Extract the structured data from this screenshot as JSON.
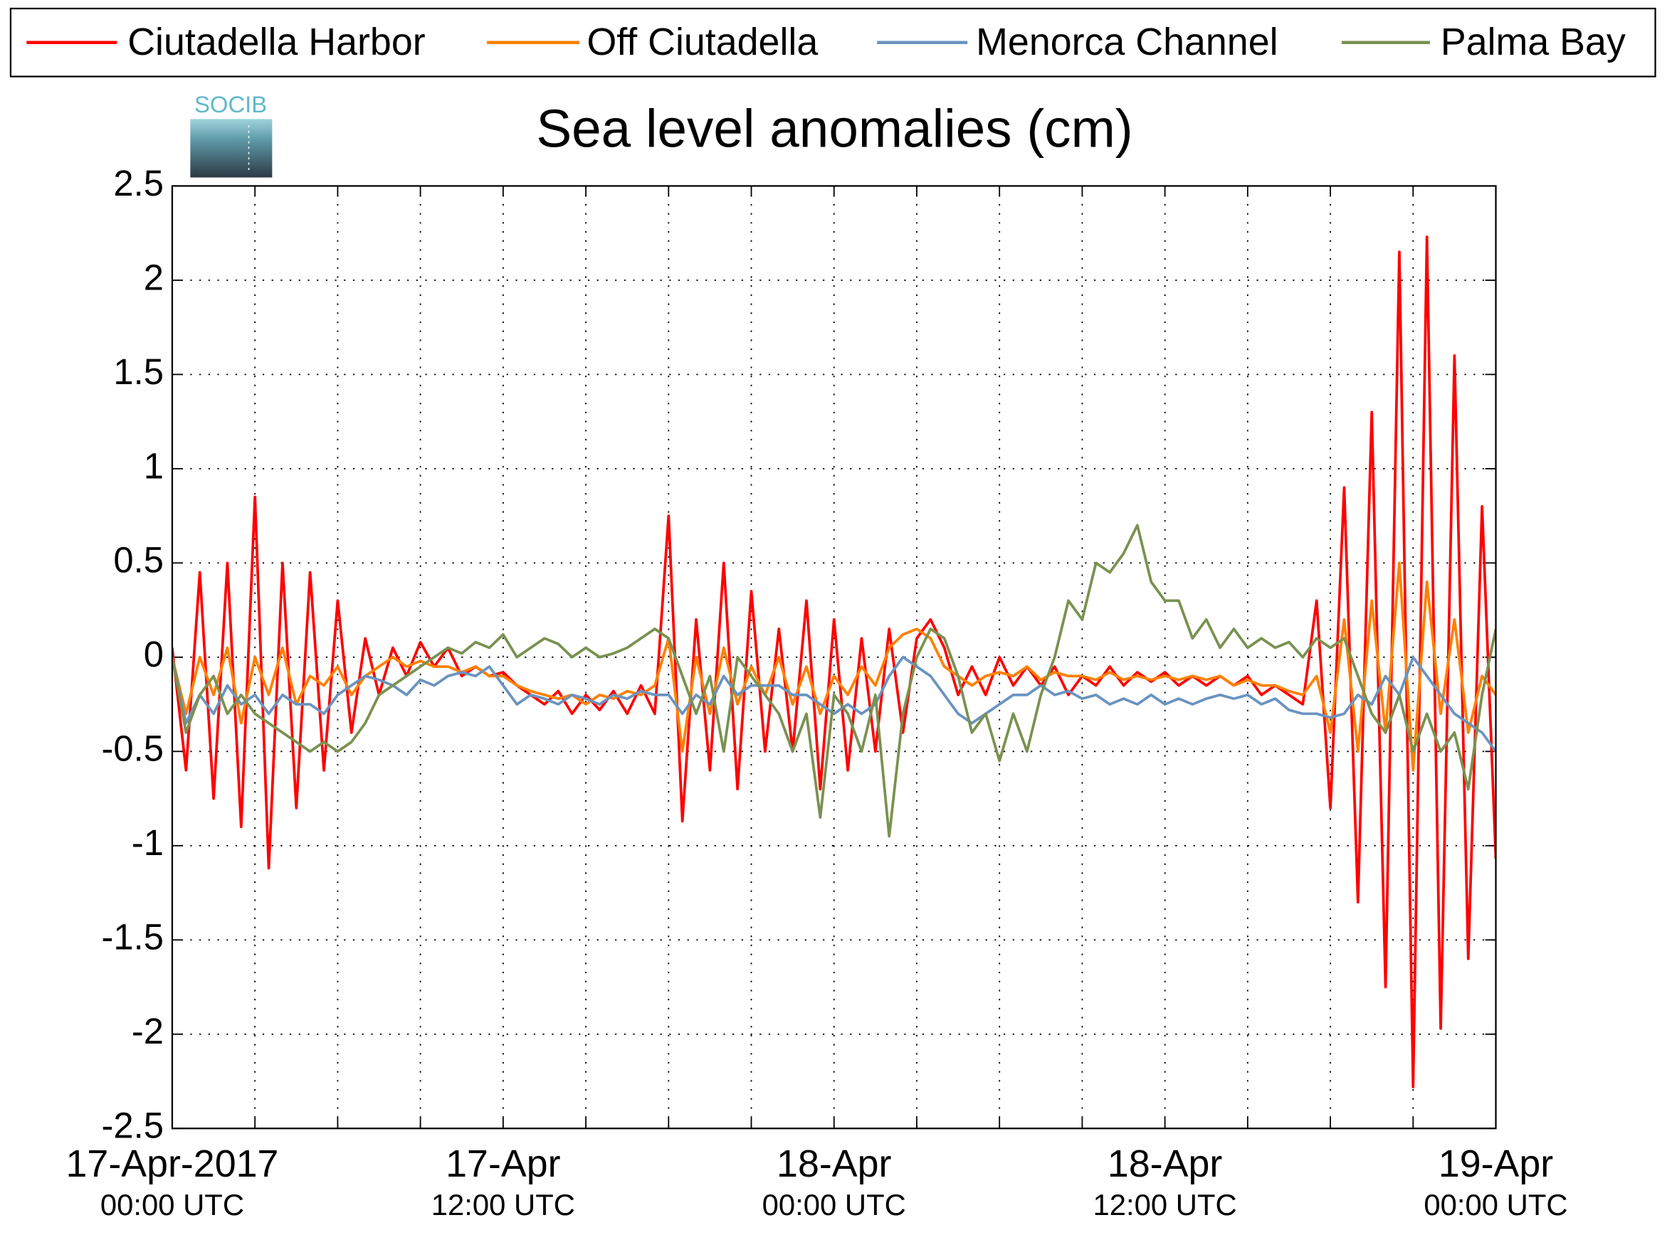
{
  "chart_data": {
    "type": "line",
    "title": "Sea level anomalies (cm)",
    "logo_text": "SOCIB",
    "x": [
      "2017-04-17T00:00Z",
      "2017-04-17T00:30Z",
      "2017-04-17T01:00Z",
      "2017-04-17T01:30Z",
      "2017-04-17T02:00Z",
      "2017-04-17T02:30Z",
      "2017-04-17T03:00Z",
      "2017-04-17T03:30Z",
      "2017-04-17T04:00Z",
      "2017-04-17T04:30Z",
      "2017-04-17T05:00Z",
      "2017-04-17T05:30Z",
      "2017-04-17T06:00Z",
      "2017-04-17T06:30Z",
      "2017-04-17T07:00Z",
      "2017-04-17T07:30Z",
      "2017-04-17T08:00Z",
      "2017-04-17T08:30Z",
      "2017-04-17T09:00Z",
      "2017-04-17T09:30Z",
      "2017-04-17T10:00Z",
      "2017-04-17T10:30Z",
      "2017-04-17T11:00Z",
      "2017-04-17T11:30Z",
      "2017-04-17T12:00Z",
      "2017-04-17T12:30Z",
      "2017-04-17T13:00Z",
      "2017-04-17T13:30Z",
      "2017-04-17T14:00Z",
      "2017-04-17T14:30Z",
      "2017-04-17T15:00Z",
      "2017-04-17T15:30Z",
      "2017-04-17T16:00Z",
      "2017-04-17T16:30Z",
      "2017-04-17T17:00Z",
      "2017-04-17T17:30Z",
      "2017-04-17T18:00Z",
      "2017-04-17T18:30Z",
      "2017-04-17T19:00Z",
      "2017-04-17T19:30Z",
      "2017-04-17T20:00Z",
      "2017-04-17T20:30Z",
      "2017-04-17T21:00Z",
      "2017-04-17T21:30Z",
      "2017-04-17T22:00Z",
      "2017-04-17T22:30Z",
      "2017-04-17T23:00Z",
      "2017-04-17T23:30Z",
      "2017-04-18T00:00Z",
      "2017-04-18T00:30Z",
      "2017-04-18T01:00Z",
      "2017-04-18T01:30Z",
      "2017-04-18T02:00Z",
      "2017-04-18T02:30Z",
      "2017-04-18T03:00Z",
      "2017-04-18T03:30Z",
      "2017-04-18T04:00Z",
      "2017-04-18T04:30Z",
      "2017-04-18T05:00Z",
      "2017-04-18T05:30Z",
      "2017-04-18T06:00Z",
      "2017-04-18T06:30Z",
      "2017-04-18T07:00Z",
      "2017-04-18T07:30Z",
      "2017-04-18T08:00Z",
      "2017-04-18T08:30Z",
      "2017-04-18T09:00Z",
      "2017-04-18T09:30Z",
      "2017-04-18T10:00Z",
      "2017-04-18T10:30Z",
      "2017-04-18T11:00Z",
      "2017-04-18T11:30Z",
      "2017-04-18T12:00Z",
      "2017-04-18T12:30Z",
      "2017-04-18T13:00Z",
      "2017-04-18T13:30Z",
      "2017-04-18T14:00Z",
      "2017-04-18T14:30Z",
      "2017-04-18T15:00Z",
      "2017-04-18T15:30Z",
      "2017-04-18T16:00Z",
      "2017-04-18T16:30Z",
      "2017-04-18T17:00Z",
      "2017-04-18T17:30Z",
      "2017-04-18T18:00Z",
      "2017-04-18T18:30Z",
      "2017-04-18T19:00Z",
      "2017-04-18T19:30Z",
      "2017-04-18T20:00Z",
      "2017-04-18T20:30Z",
      "2017-04-18T21:00Z",
      "2017-04-18T21:30Z",
      "2017-04-18T22:00Z",
      "2017-04-18T22:30Z",
      "2017-04-18T23:00Z",
      "2017-04-18T23:30Z",
      "2017-04-19T00:00Z"
    ],
    "series": [
      {
        "name": "Ciutadella Harbor",
        "color": "#ff0000",
        "values": [
          0.05,
          -0.6,
          0.45,
          -0.75,
          0.5,
          -0.9,
          0.85,
          -1.12,
          0.5,
          -0.8,
          0.45,
          -0.6,
          0.3,
          -0.4,
          0.1,
          -0.2,
          0.05,
          -0.1,
          0.08,
          -0.05,
          0.05,
          -0.1,
          -0.05,
          -0.1,
          -0.08,
          -0.15,
          -0.2,
          -0.25,
          -0.18,
          -0.3,
          -0.2,
          -0.28,
          -0.18,
          -0.3,
          -0.15,
          -0.3,
          0.75,
          -0.87,
          0.2,
          -0.6,
          0.5,
          -0.7,
          0.35,
          -0.5,
          0.15,
          -0.5,
          0.3,
          -0.7,
          0.2,
          -0.6,
          0.1,
          -0.5,
          0.15,
          -0.4,
          0.1,
          0.2,
          0.05,
          -0.2,
          -0.05,
          -0.2,
          0.0,
          -0.15,
          -0.05,
          -0.15,
          -0.05,
          -0.2,
          -0.1,
          -0.15,
          -0.05,
          -0.15,
          -0.08,
          -0.13,
          -0.08,
          -0.15,
          -0.1,
          -0.15,
          -0.1,
          -0.15,
          -0.1,
          -0.2,
          -0.15,
          -0.2,
          -0.25,
          0.3,
          -0.8,
          0.9,
          -1.3,
          1.3,
          -1.75,
          2.15,
          -2.28,
          2.23,
          -1.97,
          1.6,
          -1.6,
          0.8,
          -1.07
        ]
      },
      {
        "name": "Off Ciutadella",
        "color": "#ff8000",
        "values": [
          0.0,
          -0.3,
          0.0,
          -0.2,
          0.05,
          -0.35,
          0.0,
          -0.2,
          0.05,
          -0.25,
          -0.1,
          -0.15,
          -0.05,
          -0.2,
          -0.1,
          -0.05,
          0.0,
          -0.05,
          -0.02,
          -0.05,
          -0.05,
          -0.08,
          -0.05,
          -0.1,
          -0.1,
          -0.15,
          -0.18,
          -0.2,
          -0.22,
          -0.2,
          -0.25,
          -0.2,
          -0.22,
          -0.18,
          -0.2,
          -0.15,
          0.1,
          -0.5,
          0.0,
          -0.3,
          0.05,
          -0.25,
          -0.05,
          -0.2,
          0.0,
          -0.25,
          -0.05,
          -0.3,
          -0.1,
          -0.2,
          -0.05,
          -0.15,
          0.05,
          0.12,
          0.15,
          0.1,
          -0.05,
          -0.1,
          -0.15,
          -0.1,
          -0.08,
          -0.1,
          -0.05,
          -0.12,
          -0.08,
          -0.1,
          -0.1,
          -0.12,
          -0.08,
          -0.12,
          -0.1,
          -0.12,
          -0.1,
          -0.12,
          -0.1,
          -0.12,
          -0.1,
          -0.15,
          -0.12,
          -0.15,
          -0.15,
          -0.18,
          -0.2,
          -0.1,
          -0.4,
          0.2,
          -0.5,
          0.3,
          -0.4,
          0.5,
          -0.6,
          0.4,
          -0.3,
          0.2,
          -0.4,
          -0.1,
          -0.2
        ]
      },
      {
        "name": "Menorca Channel",
        "color": "#6a93c0",
        "values": [
          0.0,
          -0.35,
          -0.2,
          -0.3,
          -0.15,
          -0.25,
          -0.2,
          -0.3,
          -0.2,
          -0.25,
          -0.25,
          -0.3,
          -0.2,
          -0.15,
          -0.1,
          -0.12,
          -0.15,
          -0.2,
          -0.12,
          -0.15,
          -0.1,
          -0.08,
          -0.1,
          -0.05,
          -0.15,
          -0.25,
          -0.2,
          -0.22,
          -0.25,
          -0.2,
          -0.22,
          -0.25,
          -0.2,
          -0.22,
          -0.18,
          -0.2,
          -0.2,
          -0.3,
          -0.2,
          -0.25,
          -0.1,
          -0.2,
          -0.15,
          -0.15,
          -0.15,
          -0.2,
          -0.2,
          -0.25,
          -0.3,
          -0.25,
          -0.3,
          -0.25,
          -0.1,
          0.0,
          -0.05,
          -0.1,
          -0.2,
          -0.3,
          -0.35,
          -0.3,
          -0.25,
          -0.2,
          -0.2,
          -0.15,
          -0.2,
          -0.18,
          -0.22,
          -0.2,
          -0.25,
          -0.22,
          -0.25,
          -0.2,
          -0.25,
          -0.22,
          -0.25,
          -0.22,
          -0.2,
          -0.22,
          -0.2,
          -0.25,
          -0.22,
          -0.28,
          -0.3,
          -0.3,
          -0.32,
          -0.3,
          -0.2,
          -0.25,
          -0.1,
          -0.2,
          0.0,
          -0.1,
          -0.2,
          -0.3,
          -0.35,
          -0.4,
          -0.5
        ]
      },
      {
        "name": "Palma Bay",
        "color": "#7a9150",
        "values": [
          0.0,
          -0.4,
          -0.2,
          -0.1,
          -0.3,
          -0.2,
          -0.3,
          -0.35,
          -0.4,
          -0.45,
          -0.5,
          -0.45,
          -0.5,
          -0.45,
          -0.35,
          -0.2,
          -0.15,
          -0.1,
          -0.05,
          0.0,
          0.05,
          0.02,
          0.08,
          0.05,
          0.12,
          0.0,
          0.05,
          0.1,
          0.07,
          0.0,
          0.05,
          0.0,
          0.02,
          0.05,
          0.1,
          0.15,
          0.1,
          -0.1,
          -0.3,
          -0.1,
          -0.5,
          0.0,
          -0.1,
          -0.2,
          -0.3,
          -0.5,
          -0.3,
          -0.85,
          -0.2,
          -0.3,
          -0.5,
          -0.2,
          -0.95,
          -0.3,
          0.0,
          0.15,
          0.1,
          -0.1,
          -0.4,
          -0.3,
          -0.55,
          -0.3,
          -0.5,
          -0.2,
          0.0,
          0.3,
          0.2,
          0.5,
          0.45,
          0.55,
          0.7,
          0.4,
          0.3,
          0.3,
          0.1,
          0.2,
          0.05,
          0.15,
          0.05,
          0.1,
          0.05,
          0.08,
          0.0,
          0.1,
          0.05,
          0.1,
          -0.1,
          -0.3,
          -0.4,
          -0.2,
          -0.5,
          -0.3,
          -0.5,
          -0.4,
          -0.7,
          -0.2,
          0.15
        ]
      }
    ],
    "xlim": [
      "2017-04-17T00:00Z",
      "2017-04-19T00:00Z"
    ],
    "xticks": [
      {
        "value": "2017-04-17T00:00Z",
        "label": "17-Apr-2017",
        "sublabel": "00:00 UTC"
      },
      {
        "value": "2017-04-17T03:00Z",
        "label": null
      },
      {
        "value": "2017-04-17T06:00Z",
        "label": null
      },
      {
        "value": "2017-04-17T09:00Z",
        "label": null
      },
      {
        "value": "2017-04-17T12:00Z",
        "label": "17-Apr",
        "sublabel": "12:00 UTC"
      },
      {
        "value": "2017-04-17T15:00Z",
        "label": null
      },
      {
        "value": "2017-04-17T18:00Z",
        "label": null
      },
      {
        "value": "2017-04-17T21:00Z",
        "label": null
      },
      {
        "value": "2017-04-18T00:00Z",
        "label": "18-Apr",
        "sublabel": "00:00 UTC"
      },
      {
        "value": "2017-04-18T03:00Z",
        "label": null
      },
      {
        "value": "2017-04-18T06:00Z",
        "label": null
      },
      {
        "value": "2017-04-18T09:00Z",
        "label": null
      },
      {
        "value": "2017-04-18T12:00Z",
        "label": "18-Apr",
        "sublabel": "12:00 UTC"
      },
      {
        "value": "2017-04-18T15:00Z",
        "label": null
      },
      {
        "value": "2017-04-18T18:00Z",
        "label": null
      },
      {
        "value": "2017-04-18T21:00Z",
        "label": null
      },
      {
        "value": "2017-04-19T00:00Z",
        "label": "19-Apr",
        "sublabel": "00:00 UTC"
      }
    ],
    "ylim": [
      -2.5,
      2.5
    ],
    "yticks": [
      -2.5,
      -2,
      -1.5,
      -1,
      -0.5,
      0,
      0.5,
      1,
      1.5,
      2,
      2.5
    ],
    "grid": true,
    "legend": "top"
  }
}
